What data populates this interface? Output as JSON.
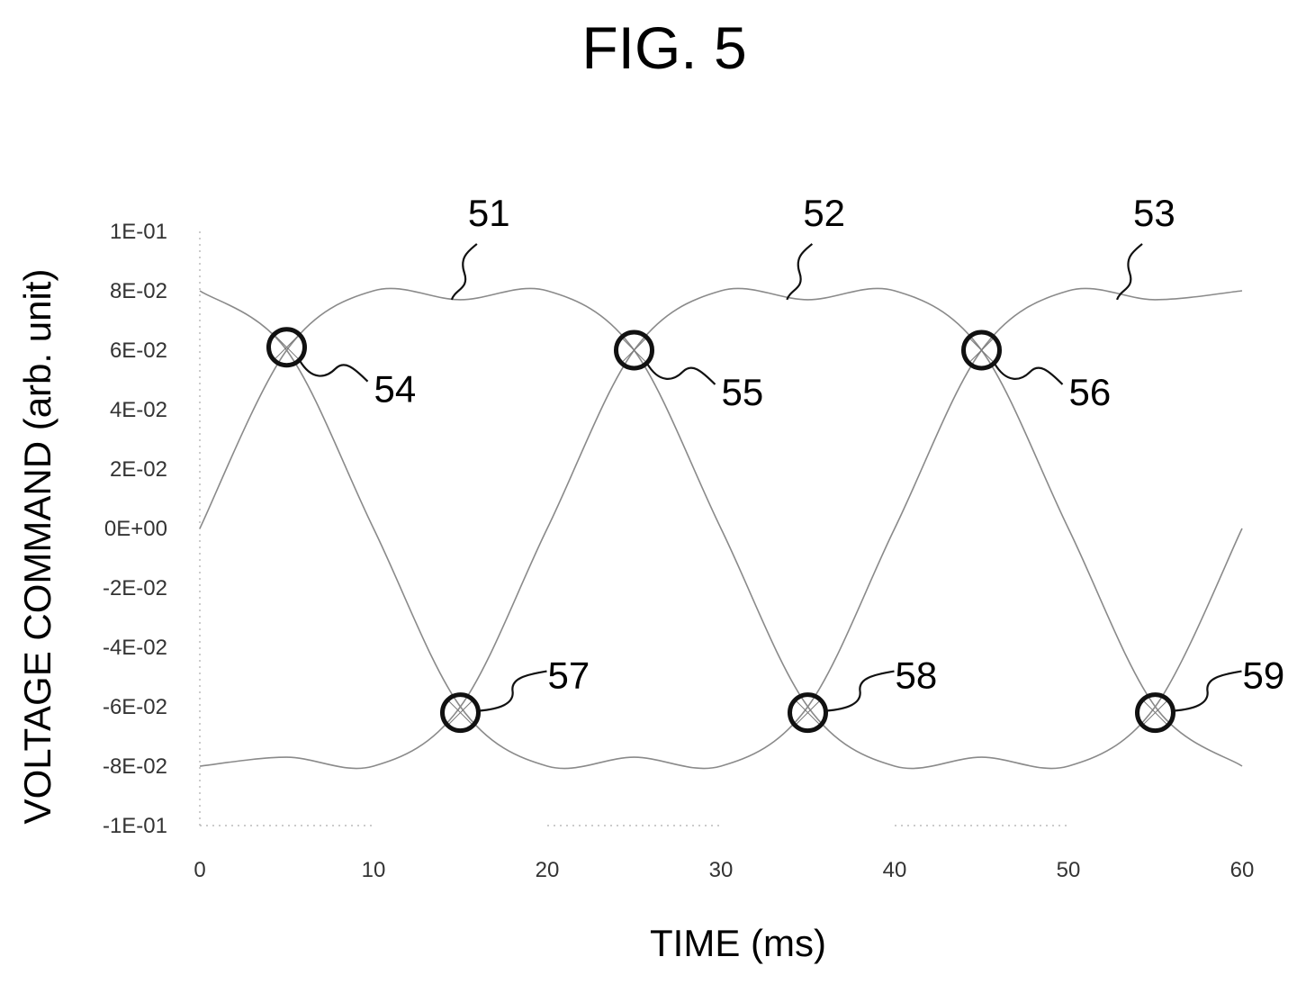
{
  "figure_title": "FIG. 5",
  "chart_data": {
    "type": "line",
    "xlabel": "TIME (ms)",
    "ylabel": "VOLTAGE COMMAND (arb. unit)",
    "xlim": [
      0,
      60
    ],
    "ylim": [
      -0.1,
      0.1
    ],
    "x_ticks": [
      "0",
      "10",
      "20",
      "30",
      "40",
      "50",
      "60"
    ],
    "y_ticks": [
      "1E-01",
      "8E-02",
      "6E-02",
      "4E-02",
      "2E-02",
      "0E+00",
      "-2E-02",
      "-4E-02",
      "-6E-02",
      "-8E-02",
      "-1E-01"
    ],
    "series": [
      {
        "x": [
          0,
          5,
          10,
          15,
          20,
          25,
          30,
          35,
          40,
          45,
          50,
          55,
          60
        ],
        "values": [
          0.0,
          0.06,
          0.08,
          0.077,
          0.08,
          0.06,
          0.0,
          -0.06,
          -0.08,
          -0.077,
          -0.08,
          -0.06,
          0.0
        ]
      },
      {
        "x": [
          0,
          5,
          10,
          15,
          20,
          25,
          30,
          35,
          40,
          45,
          50,
          55,
          60
        ],
        "values": [
          0.08,
          0.06,
          0.0,
          -0.06,
          -0.08,
          -0.077,
          -0.08,
          -0.06,
          0.0,
          0.06,
          0.08,
          0.077,
          0.08
        ]
      },
      {
        "x": [
          0,
          5,
          10,
          15,
          20,
          25,
          30,
          35,
          40,
          45,
          50,
          55,
          60
        ],
        "values": [
          -0.08,
          -0.077,
          -0.08,
          -0.06,
          0.0,
          0.06,
          0.08,
          0.077,
          0.08,
          0.06,
          0.0,
          -0.06,
          -0.08
        ]
      }
    ],
    "curve_labels": [
      {
        "text": "51",
        "x": 14.5,
        "y": 0.077
      },
      {
        "text": "52",
        "x": 33.8,
        "y": 0.077
      },
      {
        "text": "53",
        "x": 52.8,
        "y": 0.077
      }
    ],
    "crossing_points": [
      {
        "text": "54",
        "x": 5,
        "y": 0.061
      },
      {
        "text": "55",
        "x": 25,
        "y": 0.06
      },
      {
        "text": "56",
        "x": 45,
        "y": 0.06
      },
      {
        "text": "57",
        "x": 15,
        "y": -0.062
      },
      {
        "text": "58",
        "x": 35,
        "y": -0.062
      },
      {
        "text": "59",
        "x": 55,
        "y": -0.062
      }
    ],
    "grid": false
  }
}
